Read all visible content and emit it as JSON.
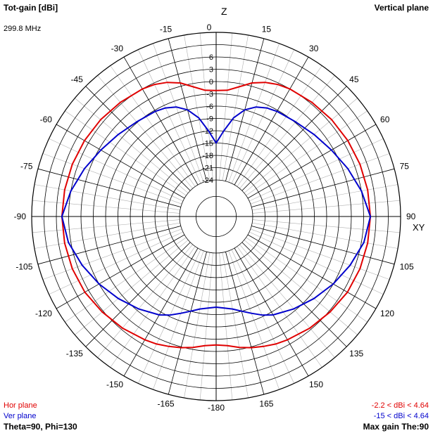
{
  "header": {
    "title": "Tot-gain [dBi]",
    "frequency": "299.8 MHz",
    "plane": "Vertical plane"
  },
  "footer": {
    "hor_label": "Hor plane",
    "ver_label": "Ver plane",
    "theta_phi": "Theta=90, Phi=130",
    "hor_range": "-2.2 < dBi < 4.64",
    "ver_range": "-15 < dBi < 4.64",
    "max_gain": "Max gain The:90"
  },
  "axes": {
    "z_label": "Z",
    "xy_label": "XY"
  },
  "colors": {
    "hor": "#e00000",
    "ver": "#0000cc",
    "grid": "#000000",
    "minor_grid": "#b0b0b0"
  },
  "chart_data": {
    "type": "polar",
    "title": "Tot-gain [dBi]",
    "r_unit": "dBi",
    "r_min": -24,
    "r_max": 12,
    "radial_ticks": [
      "6",
      "3",
      "0",
      "-3",
      "-6",
      "-9",
      "-12",
      "-15",
      "-18",
      "-21",
      "-24"
    ],
    "radial_tick_values": [
      6,
      3,
      0,
      -3,
      -6,
      -9,
      -12,
      -15,
      -18,
      -21,
      -24
    ],
    "angle_labels_right": [
      "0",
      "15",
      "30",
      "45",
      "60",
      "75",
      "90",
      "105",
      "120",
      "135",
      "150",
      "165",
      "-180"
    ],
    "angle_labels_left": [
      "-15",
      "-30",
      "-45",
      "-60",
      "-75",
      "-90",
      "-105",
      "-120",
      "-135",
      "-150",
      "-165"
    ],
    "series": [
      {
        "name": "Hor plane",
        "color": "#e00000",
        "angles": [
          0,
          5,
          10,
          15,
          20,
          25,
          30,
          40,
          50,
          60,
          70,
          80,
          90,
          100,
          110,
          120,
          130,
          140,
          150,
          155,
          160,
          165,
          170,
          175,
          180,
          185,
          190,
          195,
          200,
          205,
          210,
          220,
          230,
          240,
          250,
          260,
          270,
          280,
          290,
          300,
          310,
          320,
          330,
          335,
          340,
          345,
          350,
          355
        ],
        "values": [
          -2.2,
          -2.0,
          -0.8,
          0.8,
          1.9,
          2.6,
          3.0,
          3.4,
          3.8,
          4.1,
          4.35,
          4.55,
          4.64,
          4.55,
          4.35,
          4.0,
          3.3,
          2.6,
          1.8,
          1.4,
          0.8,
          0.2,
          -0.5,
          -1.3,
          -1.6,
          -1.3,
          -0.5,
          0.2,
          0.8,
          1.4,
          1.8,
          2.6,
          3.3,
          4.0,
          4.35,
          4.55,
          4.64,
          4.55,
          4.35,
          4.1,
          3.8,
          3.4,
          3.0,
          2.6,
          1.9,
          0.8,
          -0.8,
          -2.0
        ]
      },
      {
        "name": "Ver plane",
        "color": "#0000cc",
        "angles": [
          0,
          5,
          10,
          15,
          20,
          25,
          30,
          40,
          50,
          60,
          70,
          80,
          90,
          100,
          110,
          120,
          130,
          140,
          150,
          155,
          160,
          165,
          170,
          175,
          180,
          185,
          190,
          195,
          200,
          205,
          210,
          220,
          230,
          240,
          250,
          260,
          270,
          280,
          290,
          300,
          310,
          320,
          330,
          335,
          340,
          345,
          350,
          355
        ],
        "values": [
          -15,
          -12,
          -8.5,
          -6,
          -4.5,
          -3.7,
          -3.3,
          -2.8,
          -1.8,
          -0.5,
          1.2,
          3.0,
          4.64,
          3.6,
          1.8,
          0.0,
          -1.8,
          -3.5,
          -5.2,
          -6.4,
          -7.8,
          -9.0,
          -10.0,
          -10.5,
          -10.8,
          -10.5,
          -10.0,
          -9.0,
          -7.8,
          -6.4,
          -5.2,
          -3.5,
          -1.8,
          0.0,
          1.8,
          3.6,
          4.64,
          3.0,
          1.2,
          -0.5,
          -1.8,
          -2.8,
          -3.3,
          -3.7,
          -4.5,
          -6,
          -8.5,
          -12
        ]
      }
    ]
  }
}
